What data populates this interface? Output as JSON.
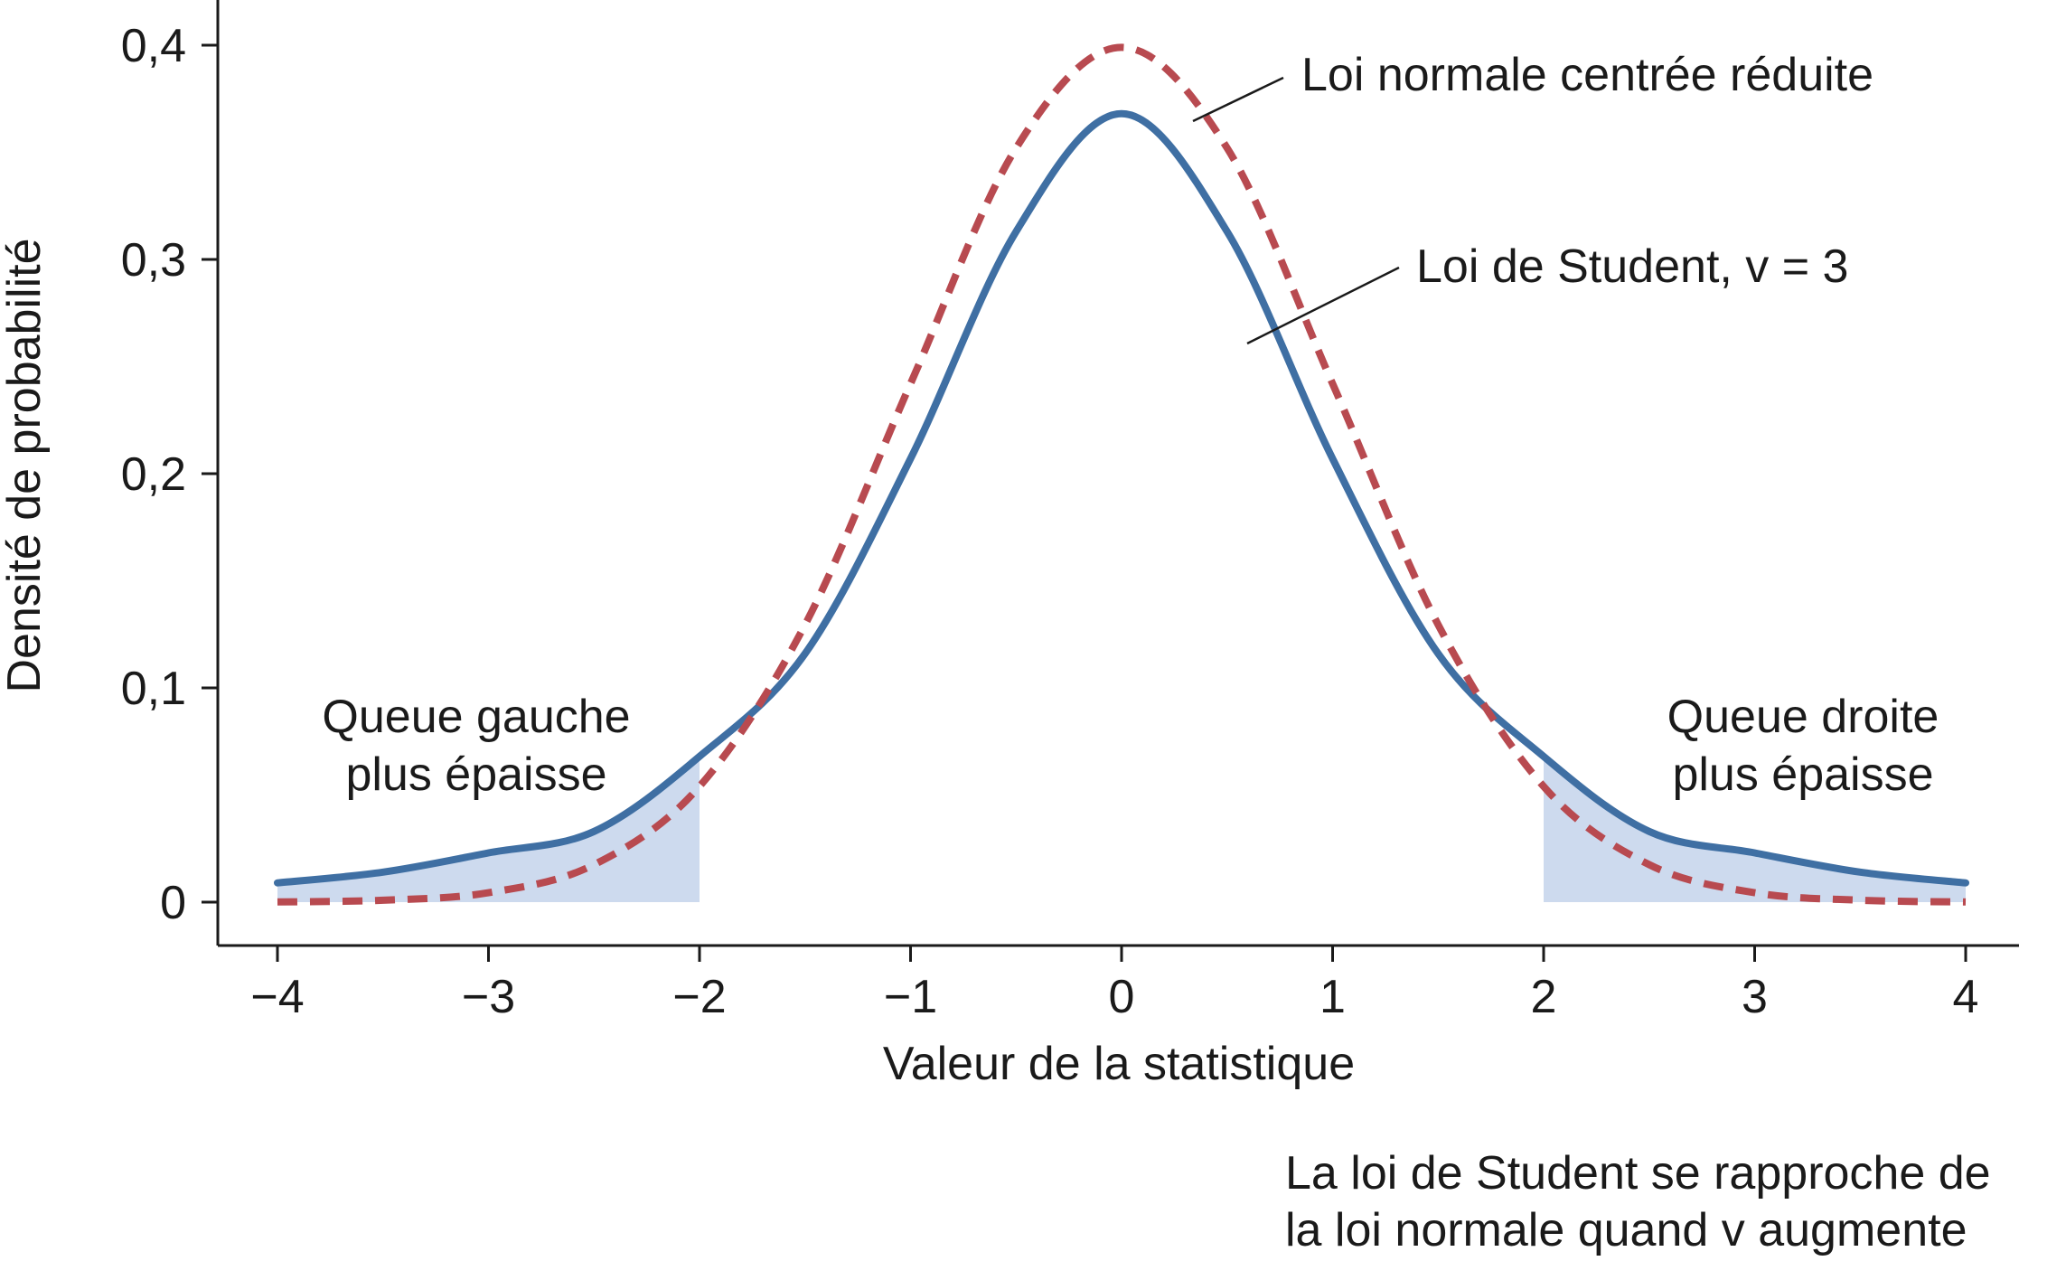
{
  "chart_data": {
    "type": "line",
    "xlabel": "Valeur de la statistique",
    "ylabel": "Densité de probabilité",
    "xlim": [
      -4,
      4
    ],
    "ylim": [
      0,
      0.4
    ],
    "x_ticks": [
      -4,
      -3,
      -2,
      -1,
      0,
      1,
      2,
      3,
      4
    ],
    "x_tick_labels": [
      "−4",
      "−3",
      "−2",
      "−1",
      "0",
      "1",
      "2",
      "3",
      "4"
    ],
    "y_ticks": [
      0,
      0.1,
      0.2,
      0.3,
      0.4
    ],
    "y_tick_labels": [
      "0",
      "0,1",
      "0,2",
      "0,3",
      "0,4"
    ],
    "grid": false,
    "x": [
      -4,
      -3.5,
      -3,
      -2.5,
      -2,
      -1.5,
      -1,
      -0.5,
      0,
      0.5,
      1,
      1.5,
      2,
      2.5,
      3,
      3.5,
      4
    ],
    "series": [
      {
        "name": "Loi de Student, v = 3",
        "color": "#3f6fa3",
        "style": "solid",
        "values": [
          0.009,
          0.014,
          0.023,
          0.033,
          0.068,
          0.116,
          0.207,
          0.313,
          0.368,
          0.313,
          0.207,
          0.116,
          0.068,
          0.033,
          0.023,
          0.014,
          0.009
        ]
      },
      {
        "name": "Loi normale centrée réduite",
        "color": "#b84a50",
        "style": "dashed",
        "values": [
          0.0001,
          0.0009,
          0.0044,
          0.0175,
          0.054,
          0.1295,
          0.242,
          0.352,
          0.399,
          0.352,
          0.242,
          0.1295,
          0.054,
          0.0175,
          0.0044,
          0.0009,
          0.0001
        ]
      }
    ],
    "shaded_regions": [
      {
        "x_from": -4,
        "x_to": -2,
        "series": "Loi de Student, v = 3",
        "color": "#cddaee"
      },
      {
        "x_from": 2,
        "x_to": 4,
        "series": "Loi de Student, v = 3",
        "color": "#cddaee"
      }
    ],
    "annotations": {
      "normal_label": "Loi normale centrée réduite",
      "student_label": "Loi de Student, v = 3",
      "left_tail": [
        "Queue gauche",
        "plus épaisse"
      ],
      "right_tail": [
        "Queue droite",
        "plus épaisse"
      ],
      "footnote": [
        "La loi de Student se rapproche de",
        "la loi normale quand v augmente"
      ]
    }
  }
}
